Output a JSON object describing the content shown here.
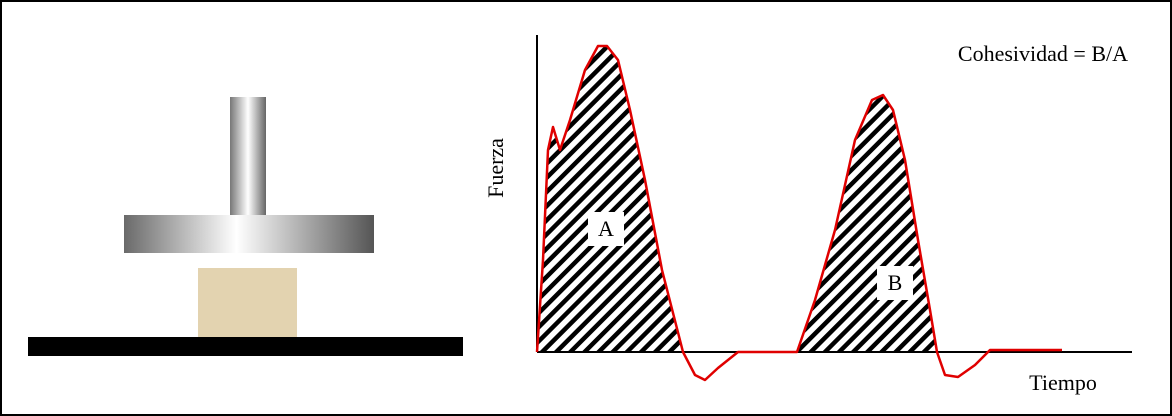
{
  "diagram": {
    "formula": "Cohesividad = B/A",
    "y_axis_label": "Fuerza",
    "x_axis_label": "Tiempo",
    "areas": [
      "A",
      "B"
    ]
  }
}
